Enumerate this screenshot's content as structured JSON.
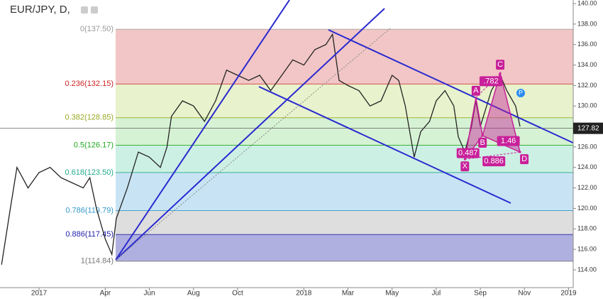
{
  "chart_data": {
    "type": "line",
    "title": "EUR/JPY, D,",
    "x": [
      -1.7,
      -1.3,
      -1,
      -0.5,
      0,
      0.5,
      1,
      1.5,
      2,
      2.3,
      2.6,
      3,
      3.3,
      3.5,
      4,
      4.5,
      5,
      5.5,
      5.8,
      6,
      6.5,
      7,
      7.5,
      8,
      8.5,
      9,
      9.5,
      10,
      10.5,
      11,
      11.5,
      12,
      12.5,
      13,
      13.3,
      13.6,
      14,
      14.5,
      15,
      15.5,
      16,
      16.3,
      16.6,
      17,
      17.3,
      17.7,
      18,
      18.4,
      18.8,
      19,
      19.3,
      19.6,
      19.8,
      20,
      20.5,
      20.9,
      21.2,
      21.6,
      21.8
    ],
    "series": [
      {
        "name": "EUR/JPY",
        "color": "#222222",
        "values": [
          114.5,
          120,
          124,
          122,
          123.5,
          124,
          123,
          122.5,
          122,
          123,
          120,
          117,
          115.5,
          119,
          122,
          125.5,
          125,
          124,
          126,
          129,
          130.5,
          130,
          128.5,
          130.5,
          133.5,
          133,
          132.5,
          133,
          131.5,
          133,
          134.5,
          134,
          135.5,
          136,
          137,
          132.5,
          132,
          131.5,
          130,
          130.5,
          133,
          132.5,
          130,
          125,
          127.5,
          128.5,
          130.5,
          131.5,
          130,
          127,
          125.5,
          128,
          130.5,
          128,
          131.5,
          133,
          131.5,
          130,
          128
        ]
      }
    ],
    "xlim": [
      -1.77,
      24.21
    ],
    "xticks": [
      {
        "value": 0,
        "label": "2017"
      },
      {
        "value": 3,
        "label": "Apr"
      },
      {
        "value": 5,
        "label": "Jun"
      },
      {
        "value": 7,
        "label": "Aug"
      },
      {
        "value": 9,
        "label": "Oct"
      },
      {
        "value": 12,
        "label": "2018"
      },
      {
        "value": 14,
        "label": "Mar"
      },
      {
        "value": 16,
        "label": "May"
      },
      {
        "value": 18,
        "label": "Jul"
      },
      {
        "value": 20,
        "label": "Sep"
      },
      {
        "value": 22,
        "label": "Nov"
      },
      {
        "value": 24,
        "label": "2019"
      }
    ],
    "ylim": [
      112.4,
      140.35
    ],
    "yticks": [
      {
        "value": 114,
        "label": "114.00"
      },
      {
        "value": 116,
        "label": "116.00"
      },
      {
        "value": 118,
        "label": "118.00"
      },
      {
        "value": 120,
        "label": "120.00"
      },
      {
        "value": 122,
        "label": "122.00"
      },
      {
        "value": 124,
        "label": "124.00"
      },
      {
        "value": 126,
        "label": "126.00"
      },
      {
        "value": 128,
        "label": "128.00"
      },
      {
        "value": 130,
        "label": "130.00"
      },
      {
        "value": 132,
        "label": "132.00"
      },
      {
        "value": 134,
        "label": "134.00"
      },
      {
        "value": 136,
        "label": "136.00"
      },
      {
        "value": 138,
        "label": "138.00"
      },
      {
        "value": 140,
        "label": "140.00"
      }
    ],
    "last_price": {
      "value": 127.82,
      "label": "127.82"
    },
    "fib_levels": [
      {
        "label": "0(137.50)",
        "value": 137.5,
        "color": "#999999",
        "fill": "#f2c6c6"
      },
      {
        "label": "0.236(132.15)",
        "value": 132.15,
        "color": "#cc2222",
        "fill": "#e8f2cc"
      },
      {
        "label": "0.382(128.85)",
        "value": 128.85,
        "color": "#99aa22",
        "fill": "#d6f2d4"
      },
      {
        "label": "0.5(126.17)",
        "value": 126.17,
        "color": "#22aa22",
        "fill": "#cdf0e4"
      },
      {
        "label": "0.618(123.50)",
        "value": 123.5,
        "color": "#22aa88",
        "fill": "#c8e4f4"
      },
      {
        "label": "0.786(119.79)",
        "value": 119.79,
        "color": "#3399cc",
        "fill": "#dedede"
      },
      {
        "label": "0.886(117.45)",
        "value": 117.45,
        "color": "#2222aa",
        "fill": "#b0b0e0"
      },
      {
        "label": "1(114.84)",
        "value": 114.84,
        "color": "#777777",
        "fill": "none"
      }
    ],
    "pattern": {
      "color": "#c8209a",
      "points": [
        {
          "label": "X",
          "x": 19.3,
          "y": 124.8
        },
        {
          "label": "A",
          "x": 19.8,
          "y": 130.8
        },
        {
          "label": "B",
          "x": 20.1,
          "y": 127.1
        },
        {
          "label": "C",
          "x": 20.9,
          "y": 133.2
        },
        {
          "label": "D",
          "x": 21.8,
          "y": 125.5
        }
      ],
      "ratios": [
        ".782",
        "0.487",
        "1.46",
        "0.886"
      ],
      "marker": "P"
    }
  }
}
